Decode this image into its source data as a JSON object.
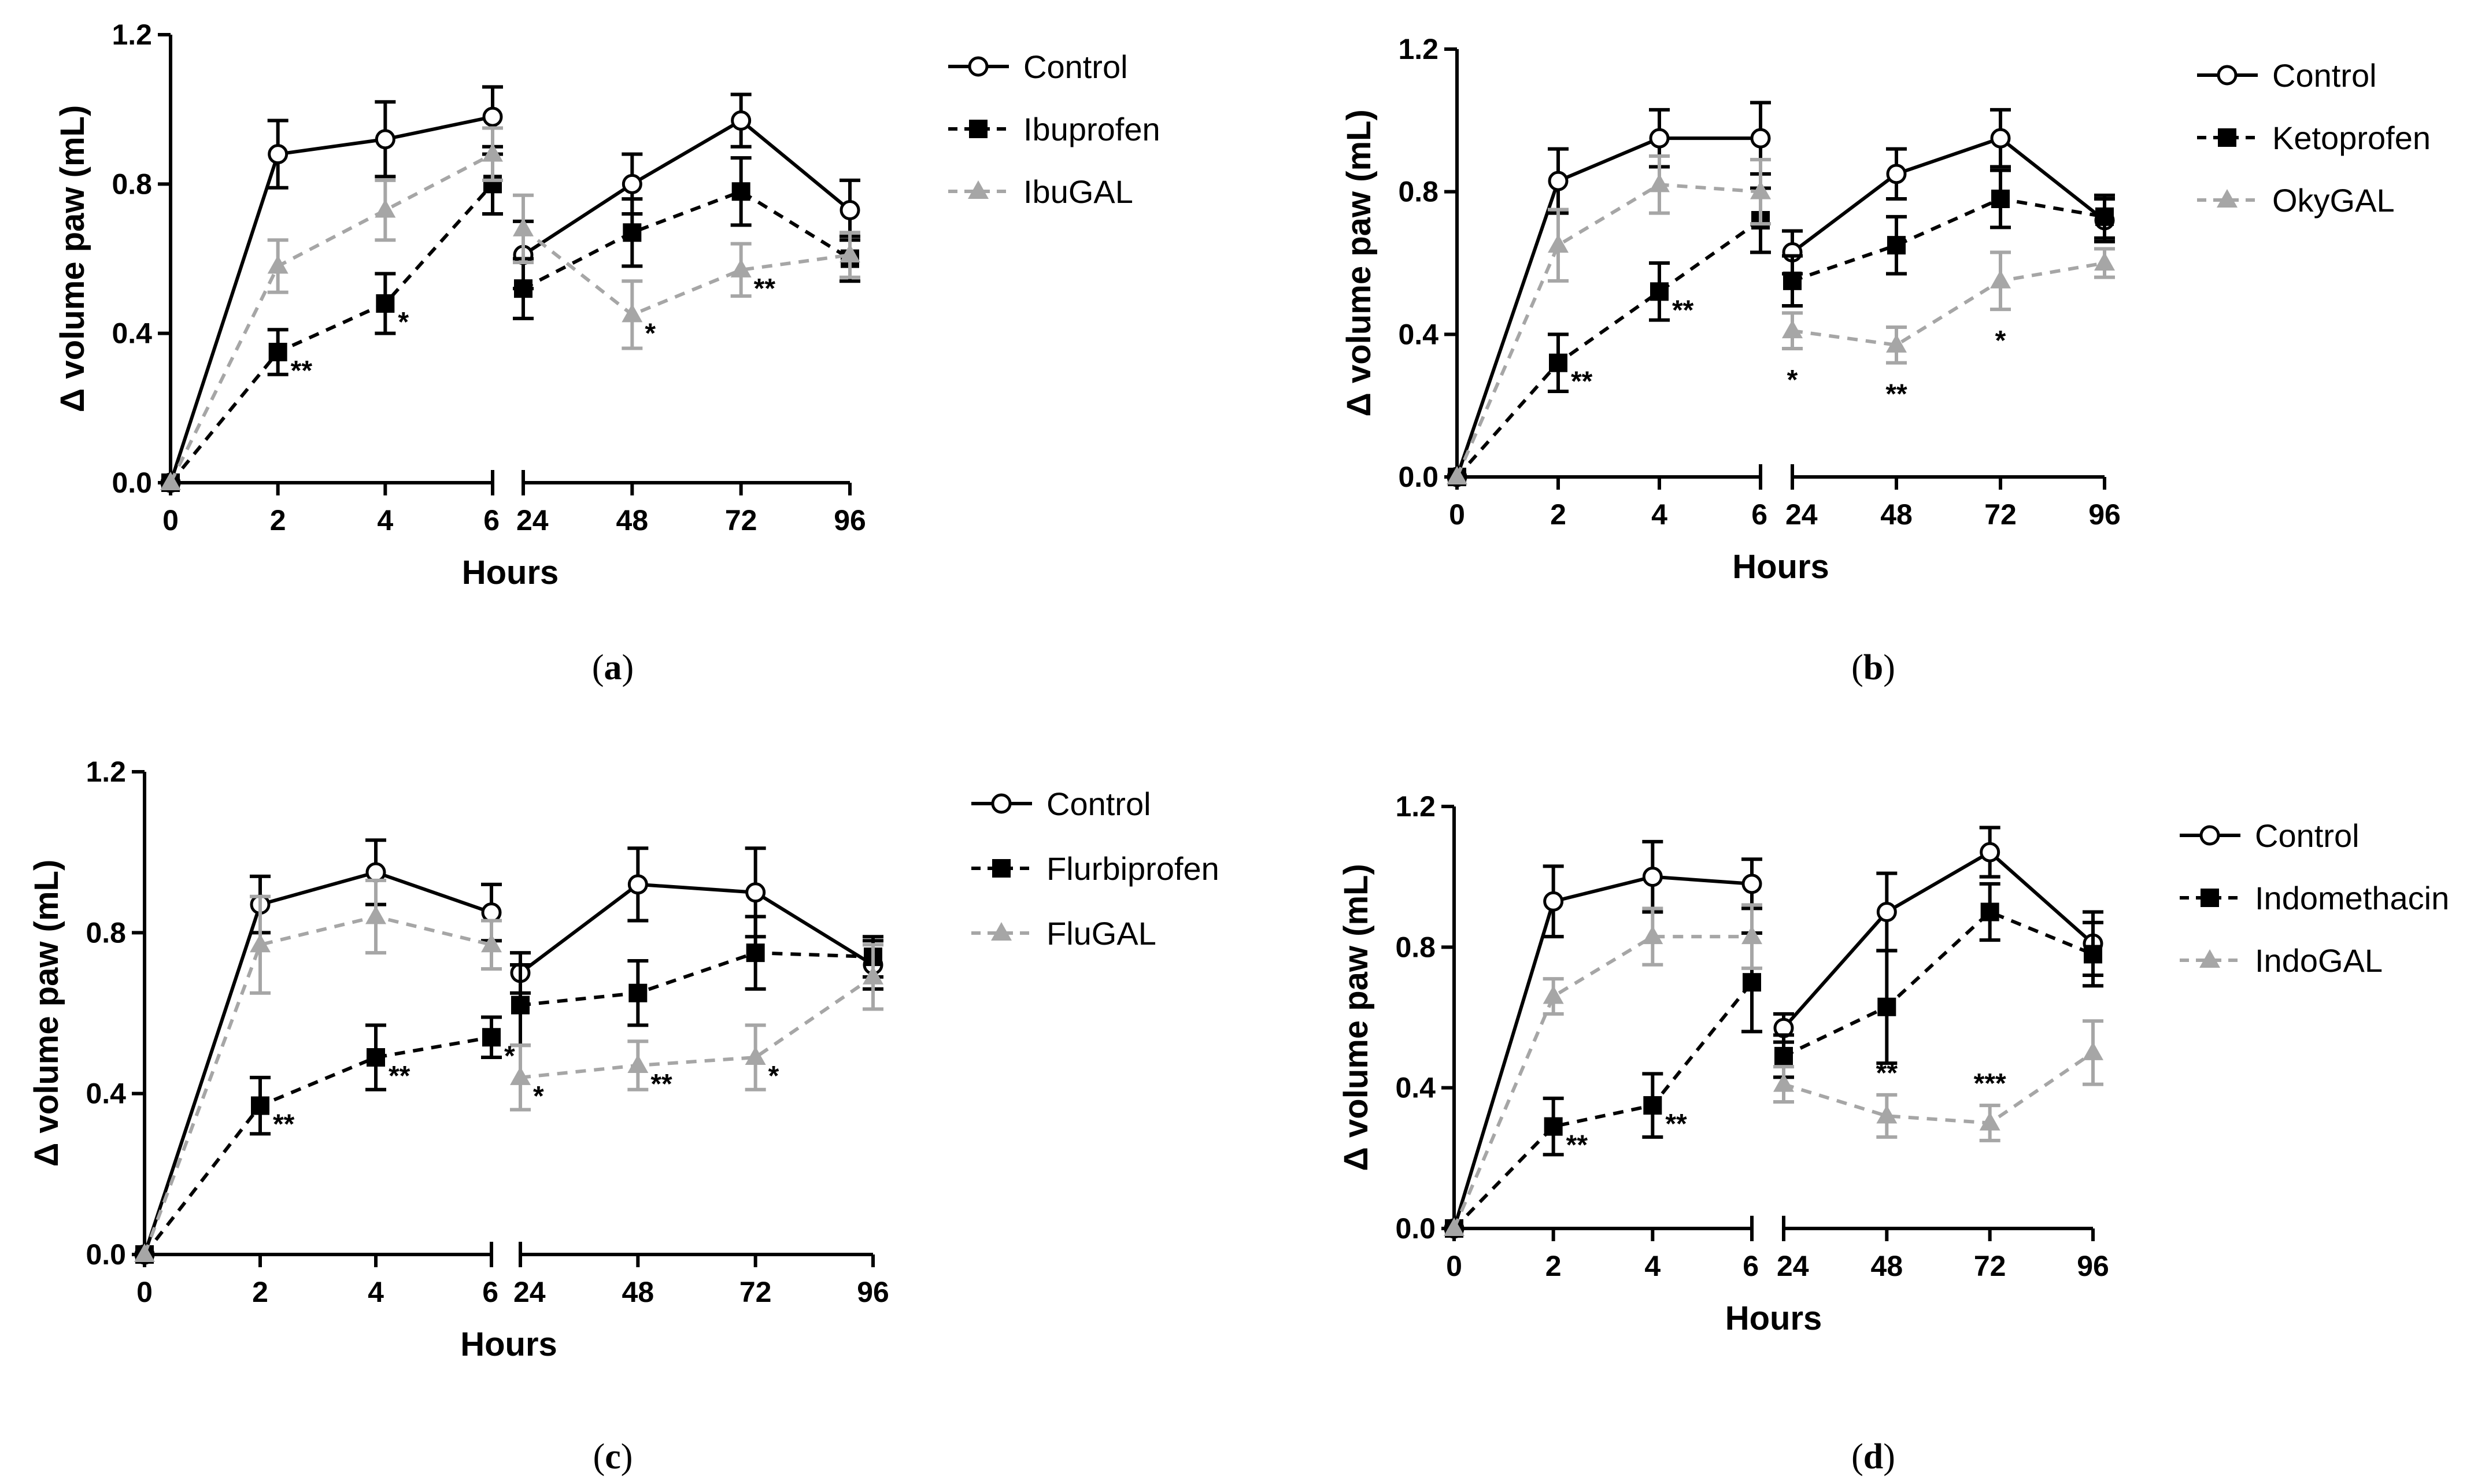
{
  "chart_data": [
    {
      "type": "line",
      "panel_label": "a",
      "xlabel": "Hours",
      "ylabel": "Δ volume paw (mL)",
      "ylim": [
        0,
        1.2
      ],
      "yticks": [
        "0.0",
        "0.4",
        "0.8",
        "1.2"
      ],
      "x": [
        "0",
        "2",
        "4",
        "6",
        "24",
        "48",
        "72",
        "96"
      ],
      "series": [
        {
          "name": "Control",
          "color": "#000000",
          "dash": "solid",
          "marker": "open-circle",
          "values": [
            0,
            0.88,
            0.92,
            0.98,
            0.61,
            0.8,
            0.97,
            0.73
          ],
          "errors": [
            0,
            0.09,
            0.1,
            0.08,
            0.09,
            0.08,
            0.07,
            0.08
          ]
        },
        {
          "name": "Ibuprofen",
          "color": "#000000",
          "dash": "dashed",
          "marker": "filled-square",
          "values": [
            0,
            0.35,
            0.48,
            0.8,
            0.52,
            0.67,
            0.78,
            0.6
          ],
          "errors": [
            0,
            0.06,
            0.08,
            0.08,
            0.08,
            0.09,
            0.09,
            0.06
          ]
        },
        {
          "name": "IbuGAL",
          "color": "#a6a6a6",
          "dash": "dashed",
          "marker": "filled-triangle",
          "values": [
            0,
            0.58,
            0.73,
            0.88,
            0.68,
            0.45,
            0.57,
            0.61
          ],
          "errors": [
            0,
            0.07,
            0.08,
            0.07,
            0.09,
            0.09,
            0.07,
            0.06
          ]
        }
      ],
      "annotations": [
        {
          "text": "**",
          "series": "Ibuprofen",
          "x_index": 1
        },
        {
          "text": "*",
          "series": "Ibuprofen",
          "x_index": 2
        },
        {
          "text": "*",
          "series": "IbuGAL",
          "x_index": 5
        },
        {
          "text": "**",
          "series": "IbuGAL",
          "x_index": 6
        }
      ]
    },
    {
      "type": "line",
      "panel_label": "b",
      "xlabel": "Hours",
      "ylabel": "Δ volume paw (mL)",
      "ylim": [
        0,
        1.2
      ],
      "yticks": [
        "0.0",
        "0.4",
        "0.8",
        "1.2"
      ],
      "x": [
        "0",
        "2",
        "4",
        "6",
        "24",
        "48",
        "72",
        "96"
      ],
      "series": [
        {
          "name": "Control",
          "color": "#000000",
          "dash": "solid",
          "marker": "open-circle",
          "values": [
            0,
            0.83,
            0.95,
            0.95,
            0.63,
            0.85,
            0.95,
            0.72
          ],
          "errors": [
            0,
            0.09,
            0.08,
            0.1,
            0.06,
            0.07,
            0.08,
            0.06
          ]
        },
        {
          "name": "Ketoprofen",
          "color": "#000000",
          "dash": "dashed",
          "marker": "filled-square",
          "values": [
            0,
            0.32,
            0.52,
            0.72,
            0.55,
            0.65,
            0.78,
            0.73
          ],
          "errors": [
            0,
            0.08,
            0.08,
            0.09,
            0.07,
            0.08,
            0.08,
            0.06
          ]
        },
        {
          "name": "OkyGAL",
          "color": "#a6a6a6",
          "dash": "dashed",
          "marker": "filled-triangle",
          "values": [
            0,
            0.65,
            0.82,
            0.8,
            0.41,
            0.37,
            0.55,
            0.6
          ],
          "errors": [
            0,
            0.1,
            0.08,
            0.09,
            0.05,
            0.05,
            0.08,
            0.04
          ]
        }
      ],
      "annotations": [
        {
          "text": "**",
          "series": "Ketoprofen",
          "x_index": 1
        },
        {
          "text": "**",
          "series": "Ketoprofen",
          "x_index": 2
        },
        {
          "text": "*",
          "series": "OkyGAL",
          "x_index": 4
        },
        {
          "text": "**",
          "series": "OkyGAL",
          "x_index": 5
        },
        {
          "text": "*",
          "series": "OkyGAL",
          "x_index": 6
        }
      ]
    },
    {
      "type": "line",
      "panel_label": "c",
      "xlabel": "Hours",
      "ylabel": "Δ volume paw (mL)",
      "ylim": [
        0,
        1.2
      ],
      "yticks": [
        "0.0",
        "0.4",
        "0.8",
        "1.2"
      ],
      "x": [
        "0",
        "2",
        "4",
        "6",
        "24",
        "48",
        "72",
        "96"
      ],
      "series": [
        {
          "name": "Control",
          "color": "#000000",
          "dash": "solid",
          "marker": "open-circle",
          "values": [
            0,
            0.87,
            0.95,
            0.85,
            0.7,
            0.92,
            0.9,
            0.72
          ],
          "errors": [
            0,
            0.07,
            0.08,
            0.07,
            0.05,
            0.09,
            0.11,
            0.06
          ]
        },
        {
          "name": "Flurbiprofen",
          "color": "#000000",
          "dash": "dashed",
          "marker": "filled-square",
          "values": [
            0,
            0.37,
            0.49,
            0.54,
            0.62,
            0.65,
            0.75,
            0.74
          ],
          "errors": [
            0,
            0.07,
            0.08,
            0.05,
            0.1,
            0.08,
            0.09,
            0.05
          ]
        },
        {
          "name": "FluGAL",
          "color": "#a6a6a6",
          "dash": "dashed",
          "marker": "filled-triangle",
          "values": [
            0,
            0.77,
            0.84,
            0.77,
            0.44,
            0.47,
            0.49,
            0.69
          ],
          "errors": [
            0,
            0.12,
            0.09,
            0.06,
            0.08,
            0.06,
            0.08,
            0.08
          ]
        }
      ],
      "annotations": [
        {
          "text": "**",
          "series": "Flurbiprofen",
          "x_index": 1
        },
        {
          "text": "**",
          "series": "Flurbiprofen",
          "x_index": 2
        },
        {
          "text": "*",
          "series": "Flurbiprofen",
          "x_index": 3
        },
        {
          "text": "*",
          "series": "FluGAL",
          "x_index": 4
        },
        {
          "text": "**",
          "series": "FluGAL",
          "x_index": 5
        },
        {
          "text": "*",
          "series": "FluGAL",
          "x_index": 6
        }
      ]
    },
    {
      "type": "line",
      "panel_label": "d",
      "xlabel": "Hours",
      "ylabel": "Δ volume paw (mL)",
      "ylim": [
        0,
        1.2
      ],
      "yticks": [
        "0.0",
        "0.4",
        "0.8",
        "1.2"
      ],
      "x": [
        "0",
        "2",
        "4",
        "6",
        "24",
        "48",
        "72",
        "96"
      ],
      "series": [
        {
          "name": "Control",
          "color": "#000000",
          "dash": "solid",
          "marker": "open-circle",
          "values": [
            0,
            0.93,
            1.0,
            0.98,
            0.57,
            0.9,
            1.07,
            0.81
          ],
          "errors": [
            0,
            0.1,
            0.1,
            0.07,
            0.04,
            0.11,
            0.07,
            0.09
          ]
        },
        {
          "name": "Indomethacin",
          "color": "#000000",
          "dash": "dashed",
          "marker": "filled-square",
          "values": [
            0,
            0.29,
            0.35,
            0.7,
            0.49,
            0.63,
            0.9,
            0.78
          ],
          "errors": [
            0,
            0.08,
            0.09,
            0.14,
            0.06,
            0.16,
            0.08,
            0.09
          ]
        },
        {
          "name": "IndoGAL",
          "color": "#a6a6a6",
          "dash": "dashed",
          "marker": "filled-triangle",
          "values": [
            0,
            0.66,
            0.83,
            0.83,
            0.41,
            0.32,
            0.3,
            0.5
          ],
          "errors": [
            0,
            0.05,
            0.08,
            0.09,
            0.05,
            0.06,
            0.05,
            0.09
          ]
        }
      ],
      "annotations": [
        {
          "text": "**",
          "series": "Indomethacin",
          "x_index": 1
        },
        {
          "text": "**",
          "series": "Indomethacin",
          "x_index": 2
        },
        {
          "text": "**",
          "series": "IndoGAL",
          "x_index": 5
        },
        {
          "text": "***",
          "series": "IndoGAL",
          "x_index": 6
        }
      ]
    }
  ]
}
